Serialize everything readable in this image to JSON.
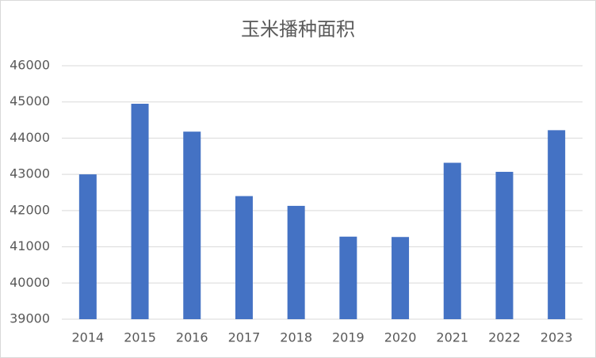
{
  "chart_data": {
    "type": "bar",
    "title": "玉米播种面积",
    "categories": [
      "2014",
      "2015",
      "2016",
      "2017",
      "2018",
      "2019",
      "2020",
      "2021",
      "2022",
      "2023"
    ],
    "values": [
      43000,
      44950,
      44180,
      42400,
      42130,
      41280,
      41270,
      43320,
      43070,
      44220
    ],
    "color": "#4472c4",
    "ylim": [
      39000,
      46000
    ],
    "yticks": [
      39000,
      40000,
      41000,
      42000,
      43000,
      44000,
      45000,
      46000
    ],
    "grid": true
  }
}
